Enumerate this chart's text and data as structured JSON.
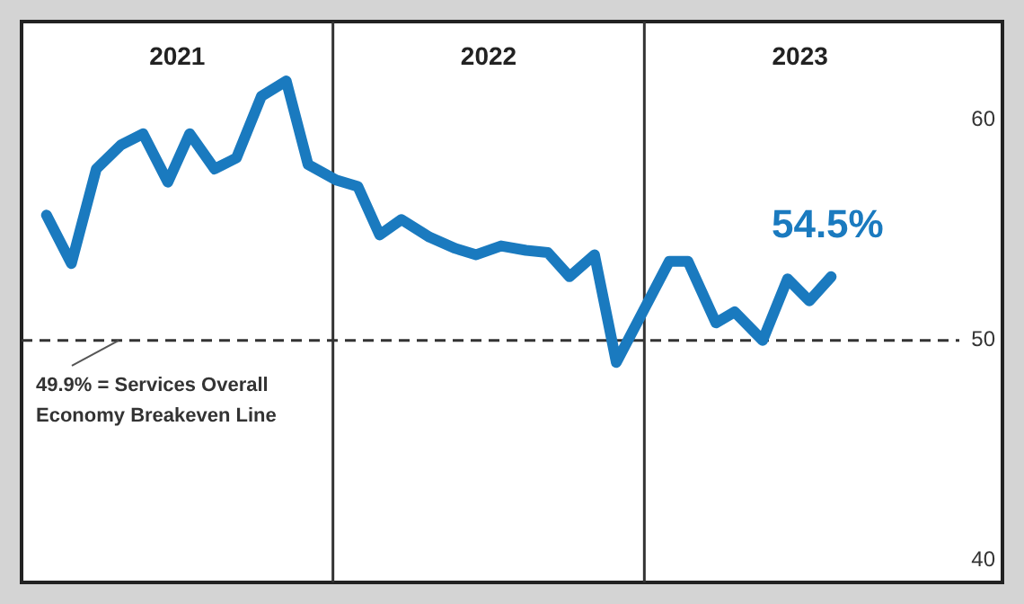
{
  "chart_data": {
    "type": "line",
    "x": [
      2021.08,
      2021.16,
      2021.24,
      2021.32,
      2021.39,
      2021.47,
      2021.54,
      2021.62,
      2021.69,
      2021.77,
      2021.85,
      2021.92,
      2022.01,
      2022.08,
      2022.15,
      2022.22,
      2022.31,
      2022.39,
      2022.46,
      2022.54,
      2022.62,
      2022.69,
      2022.76,
      2022.84,
      2022.91,
      2023.08,
      2023.14,
      2023.23,
      2023.29,
      2023.38,
      2023.46,
      2023.53,
      2023.6
    ],
    "series": [
      {
        "color": "#1a7abf",
        "values": [
          55.7,
          53.5,
          57.8,
          58.9,
          59.4,
          57.2,
          59.4,
          57.8,
          58.3,
          61.1,
          61.8,
          58.0,
          57.3,
          57.0,
          54.8,
          55.5,
          54.7,
          54.2,
          53.9,
          54.3,
          54.1,
          54.0,
          52.9,
          53.9,
          49.0,
          53.6,
          53.6,
          50.8,
          51.3,
          50.0,
          52.8,
          51.8,
          52.9
        ]
      }
    ],
    "xlim": [
      2021,
      2024.15
    ],
    "xticks": [
      {
        "value": 2021.5,
        "label": "2021"
      },
      {
        "value": 2022.5,
        "label": "2022"
      },
      {
        "value": 2023.5,
        "label": "2023"
      }
    ],
    "ylim": [
      39,
      64.5
    ],
    "yticks": [
      40,
      50,
      60
    ],
    "ref_lines": [
      {
        "axis": "y",
        "value": 50,
        "label": "49.9% = Services Overall Economy Breakeven Line",
        "line_style": "dashed",
        "color": "#333333"
      },
      {
        "axis": "x",
        "value": 2022,
        "color": "#333333"
      },
      {
        "axis": "x",
        "value": 2023,
        "color": "#333333"
      }
    ],
    "annotations": [
      "54.5%"
    ],
    "marker": "none",
    "line_style": "solid"
  }
}
